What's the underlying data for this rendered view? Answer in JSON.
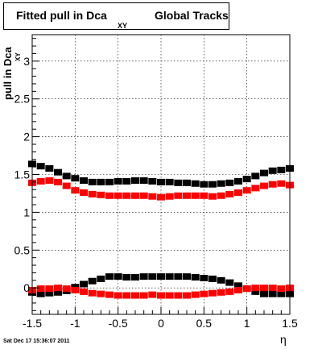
{
  "title": {
    "main": "Fitted pull in Dca",
    "subscript": "XY",
    "rest": "Global Tracks"
  },
  "timestamp": "Sat Dec 17 15:36:07 2011",
  "chart_data": {
    "type": "scatter",
    "xlabel": "η",
    "ylabel": "pull in Dca",
    "ylabel_subscript": "XY",
    "xlim": [
      -1.5,
      1.5
    ],
    "ylim": [
      -0.35,
      3.35
    ],
    "grid": true,
    "x_ticks": [
      -1.5,
      -1,
      -0.5,
      0,
      0.5,
      1,
      1.5
    ],
    "x_tick_labels": [
      "-1.5",
      "-1",
      "-0.5",
      "0",
      "0.5",
      "1",
      "1.5"
    ],
    "y_ticks": [
      0,
      0.5,
      1,
      1.5,
      2,
      2.5,
      3
    ],
    "y_tick_labels": [
      "0",
      "0.5",
      "1",
      "1.5",
      "2",
      "2.5",
      "3"
    ],
    "series": [
      {
        "color": "#000000",
        "x": [
          -1.5,
          -1.4,
          -1.3,
          -1.2,
          -1.1,
          -1.0,
          -0.9,
          -0.8,
          -0.7,
          -0.6,
          -0.5,
          -0.4,
          -0.3,
          -0.2,
          -0.1,
          0.0,
          0.1,
          0.2,
          0.3,
          0.4,
          0.5,
          0.6,
          0.7,
          0.8,
          0.9,
          1.0,
          1.1,
          1.2,
          1.3,
          1.4,
          1.5
        ],
        "y": [
          1.64,
          1.61,
          1.58,
          1.53,
          1.48,
          1.45,
          1.42,
          1.4,
          1.4,
          1.4,
          1.41,
          1.41,
          1.42,
          1.42,
          1.41,
          1.4,
          1.4,
          1.39,
          1.39,
          1.38,
          1.37,
          1.37,
          1.38,
          1.39,
          1.41,
          1.44,
          1.48,
          1.52,
          1.55,
          1.56,
          1.58
        ]
      },
      {
        "color": "#ff0000",
        "x": [
          -1.5,
          -1.4,
          -1.3,
          -1.2,
          -1.1,
          -1.0,
          -0.9,
          -0.8,
          -0.7,
          -0.6,
          -0.5,
          -0.4,
          -0.3,
          -0.2,
          -0.1,
          0.0,
          0.1,
          0.2,
          0.3,
          0.4,
          0.5,
          0.6,
          0.7,
          0.8,
          0.9,
          1.0,
          1.1,
          1.2,
          1.3,
          1.4,
          1.5
        ],
        "y": [
          1.39,
          1.41,
          1.42,
          1.4,
          1.35,
          1.29,
          1.26,
          1.24,
          1.23,
          1.22,
          1.22,
          1.22,
          1.22,
          1.22,
          1.21,
          1.2,
          1.21,
          1.22,
          1.22,
          1.22,
          1.22,
          1.21,
          1.22,
          1.24,
          1.26,
          1.29,
          1.32,
          1.35,
          1.37,
          1.38,
          1.36
        ]
      },
      {
        "color": "#000000",
        "x": [
          -1.5,
          -1.4,
          -1.3,
          -1.2,
          -1.1,
          -1.0,
          -0.9,
          -0.8,
          -0.7,
          -0.6,
          -0.5,
          -0.4,
          -0.3,
          -0.2,
          -0.1,
          0.0,
          0.1,
          0.2,
          0.3,
          0.4,
          0.5,
          0.6,
          0.7,
          0.8,
          0.9,
          1.0,
          1.1,
          1.2,
          1.3,
          1.4,
          1.5
        ],
        "y": [
          -0.06,
          -0.08,
          -0.07,
          -0.06,
          -0.04,
          0.01,
          0.05,
          0.09,
          0.12,
          0.15,
          0.15,
          0.14,
          0.14,
          0.15,
          0.15,
          0.15,
          0.15,
          0.15,
          0.15,
          0.14,
          0.13,
          0.12,
          0.1,
          0.07,
          0.03,
          -0.01,
          -0.05,
          -0.08,
          -0.08,
          -0.08,
          -0.08
        ]
      },
      {
        "color": "#ff0000",
        "x": [
          -1.5,
          -1.4,
          -1.3,
          -1.2,
          -1.1,
          -1.0,
          -0.9,
          -0.8,
          -0.7,
          -0.6,
          -0.5,
          -0.4,
          -0.3,
          -0.2,
          -0.1,
          0.0,
          0.1,
          0.2,
          0.3,
          0.4,
          0.5,
          0.6,
          0.7,
          0.8,
          0.9,
          1.0,
          1.1,
          1.2,
          1.3,
          1.4,
          1.5
        ],
        "y": [
          -0.03,
          -0.01,
          -0.01,
          0.0,
          -0.01,
          -0.03,
          -0.05,
          -0.07,
          -0.08,
          -0.09,
          -0.1,
          -0.1,
          -0.1,
          -0.1,
          -0.09,
          -0.1,
          -0.1,
          -0.1,
          -0.1,
          -0.09,
          -0.08,
          -0.07,
          -0.06,
          -0.05,
          -0.03,
          -0.01,
          0.0,
          0.0,
          0.0,
          -0.01,
          0.0
        ]
      }
    ]
  }
}
